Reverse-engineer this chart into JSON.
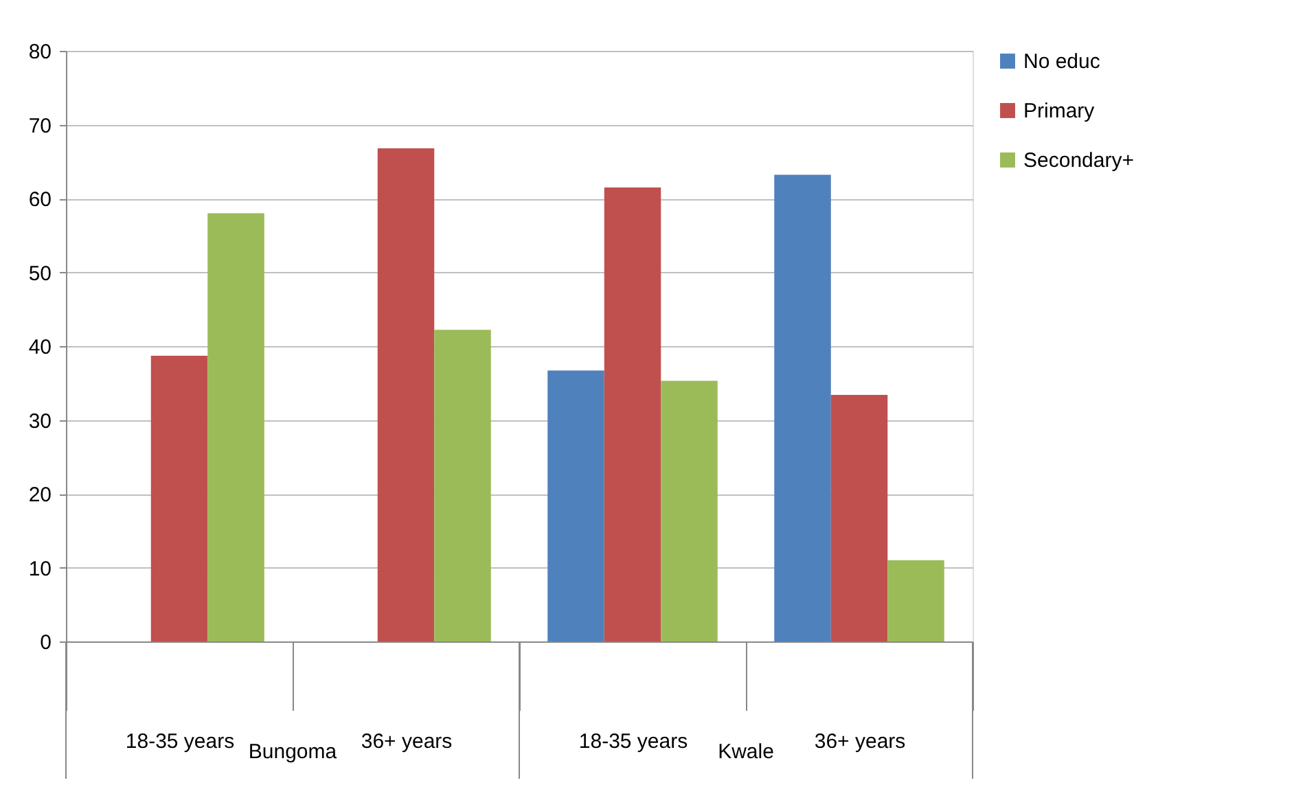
{
  "chart_data": {
    "type": "bar",
    "categories": [
      "18-35 years",
      "36+ years",
      "18-35 years",
      "36+ years"
    ],
    "series": [
      {
        "name": "No educ",
        "color": "#4f81bd",
        "values": [
          null,
          null,
          36.7,
          63.2
        ]
      },
      {
        "name": "Primary",
        "color": "#c0504d",
        "values": [
          38.7,
          66.8,
          61.5,
          33.4
        ]
      },
      {
        "name": "Secondary+",
        "color": "#9bbb59",
        "values": [
          58.0,
          42.2,
          35.3,
          11.0
        ]
      }
    ],
    "annotations": [
      "Bungoma",
      "Kwale"
    ],
    "ylim": [
      0,
      80
    ],
    "yticks": [
      0,
      10,
      20,
      30,
      40,
      50,
      60,
      70,
      80
    ],
    "grid": "y",
    "legend": "right"
  }
}
